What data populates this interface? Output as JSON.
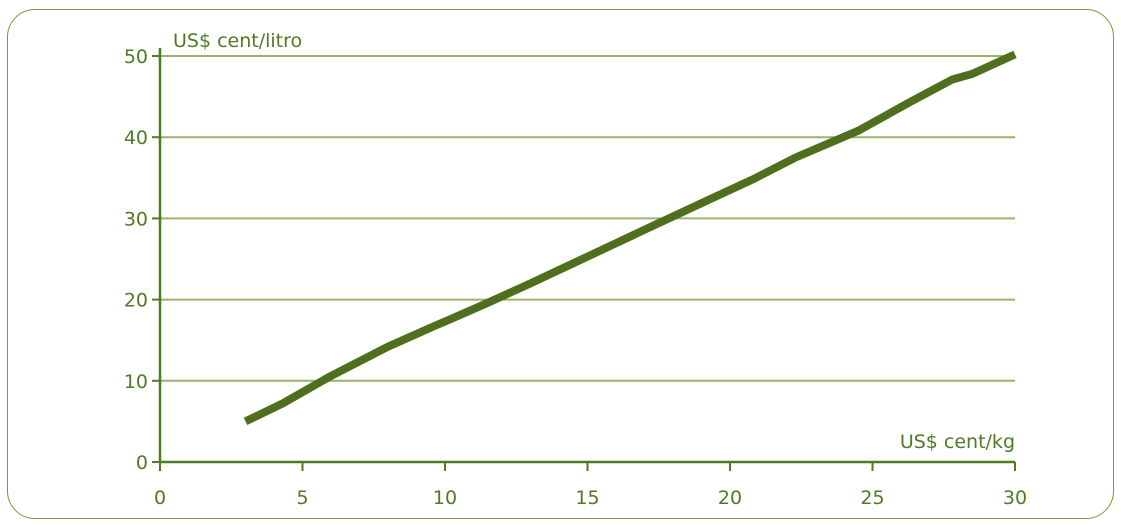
{
  "chart_data": {
    "type": "line",
    "title": "",
    "xlabel": "US$ cent/kg",
    "ylabel": "US$ cent/litro",
    "xlim": [
      0,
      30
    ],
    "ylim": [
      0,
      50
    ],
    "xticks": [
      "0",
      "5",
      "10",
      "15",
      "20",
      "25",
      "30"
    ],
    "yticks": [
      "0",
      "10",
      "20",
      "30",
      "40",
      "50"
    ],
    "grid": "horizontal",
    "legend": "none",
    "colors": {
      "line": "#4f6f1f",
      "grid": "#9bb36a",
      "axis": "#4f7a26",
      "text": "#4f7a26"
    },
    "series": [
      {
        "x": [
          3,
          4.3,
          6,
          8,
          9.6,
          10.2,
          11.5,
          13,
          15,
          17,
          19.5,
          20.8,
          22.3,
          24.5,
          26.3,
          27.8,
          28.5,
          30
        ],
        "y": [
          5,
          7.2,
          10.6,
          14.2,
          16.7,
          17.6,
          19.6,
          22,
          25.3,
          28.6,
          32.7,
          34.8,
          37.5,
          40.8,
          44.3,
          47.1,
          47.8,
          50.2
        ]
      }
    ]
  }
}
